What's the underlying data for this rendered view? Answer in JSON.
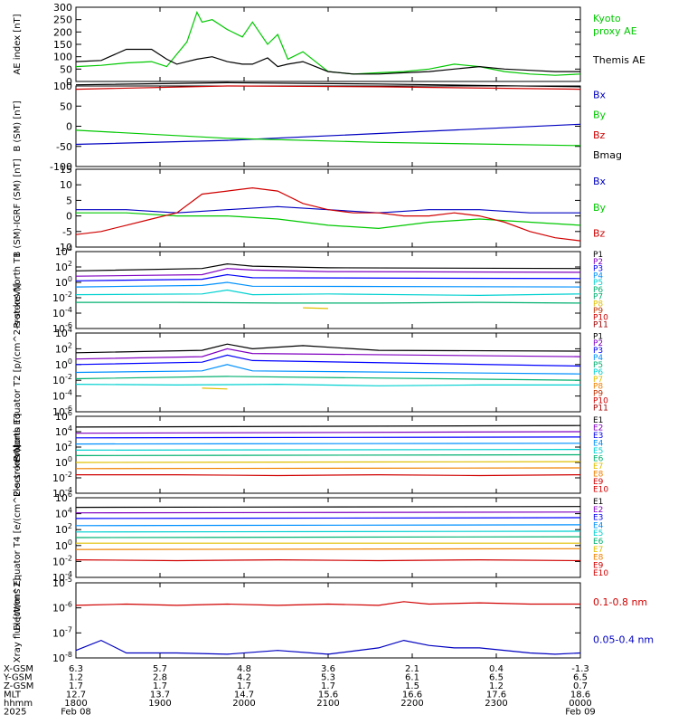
{
  "colors": {
    "black": "#000000",
    "green": "#00c800",
    "blue": "#0000c0",
    "red": "#d00000",
    "purple": "#8000c0",
    "navy": "#0000ff",
    "skyblue": "#0090ff",
    "cyan": "#00d0d0",
    "teal": "#00b070",
    "yellow": "#e0c000",
    "orange": "#f08000",
    "brown": "#c03000",
    "darkred": "#a00000"
  },
  "chart_data": [
    {
      "type": "line",
      "id": "ae",
      "ylabel": "AE index [nT]",
      "ylim": [
        0,
        300
      ],
      "yticks": [
        "0",
        "50",
        "100",
        "150",
        "200",
        "250",
        "300"
      ],
      "series": [
        {
          "name": "Kyoto proxy AE",
          "color": "green",
          "x": [
            0,
            0.05,
            0.1,
            0.15,
            0.18,
            0.2,
            0.22,
            0.24,
            0.25,
            0.27,
            0.3,
            0.33,
            0.35,
            0.38,
            0.4,
            0.42,
            0.45,
            0.5,
            0.55,
            0.6,
            0.65,
            0.7,
            0.75,
            0.8,
            0.85,
            0.9,
            0.95,
            1
          ],
          "y": [
            60,
            65,
            75,
            80,
            60,
            110,
            160,
            280,
            240,
            250,
            210,
            180,
            240,
            150,
            190,
            90,
            120,
            40,
            30,
            35,
            40,
            50,
            70,
            60,
            40,
            30,
            25,
            30
          ]
        },
        {
          "name": "Themis AE",
          "color": "black",
          "x": [
            0,
            0.05,
            0.1,
            0.15,
            0.18,
            0.2,
            0.22,
            0.24,
            0.27,
            0.3,
            0.33,
            0.35,
            0.38,
            0.4,
            0.42,
            0.45,
            0.5,
            0.55,
            0.6,
            0.65,
            0.7,
            0.75,
            0.8,
            0.85,
            0.9,
            0.95,
            1
          ],
          "y": [
            80,
            85,
            130,
            130,
            90,
            70,
            80,
            90,
            100,
            80,
            70,
            70,
            95,
            60,
            70,
            80,
            40,
            30,
            30,
            35,
            40,
            50,
            60,
            50,
            45,
            40,
            40
          ]
        }
      ]
    },
    {
      "type": "line",
      "id": "bsm",
      "ylabel": "B (SM) [nT]",
      "ylim": [
        -100,
        100
      ],
      "yticks": [
        "-100",
        "-50",
        "0",
        "50",
        "100"
      ],
      "series": [
        {
          "name": "Bx",
          "color": "blue",
          "x": [
            0,
            0.3,
            0.6,
            1
          ],
          "y": [
            -45,
            -35,
            -18,
            5
          ]
        },
        {
          "name": "By",
          "color": "green",
          "x": [
            0,
            0.3,
            0.6,
            1
          ],
          "y": [
            -10,
            -30,
            -40,
            -48
          ]
        },
        {
          "name": "Bz",
          "color": "red",
          "x": [
            0,
            0.3,
            0.6,
            1
          ],
          "y": [
            92,
            100,
            98,
            92
          ]
        },
        {
          "name": "Bmag",
          "color": "black",
          "x": [
            0,
            0.3,
            0.6,
            1
          ],
          "y": [
            103,
            108,
            105,
            98
          ]
        }
      ]
    },
    {
      "type": "line",
      "id": "bdiff",
      "ylabel": "B (SM)-IGRF (SM) [nT]",
      "ylim": [
        -10,
        15
      ],
      "yticks": [
        "-10",
        "-5",
        "0",
        "5",
        "10",
        "15"
      ],
      "series": [
        {
          "name": "Bx",
          "color": "blue",
          "x": [
            0,
            0.1,
            0.2,
            0.3,
            0.4,
            0.5,
            0.6,
            0.7,
            0.8,
            0.9,
            1
          ],
          "y": [
            2,
            2,
            1,
            2,
            3,
            2,
            1,
            2,
            2,
            1,
            1
          ]
        },
        {
          "name": "By",
          "color": "green",
          "x": [
            0,
            0.1,
            0.2,
            0.3,
            0.4,
            0.5,
            0.6,
            0.7,
            0.8,
            0.9,
            1
          ],
          "y": [
            1,
            1,
            0,
            0,
            -1,
            -3,
            -4,
            -2,
            -1,
            -2,
            -3
          ]
        },
        {
          "name": "Bz",
          "color": "red",
          "x": [
            0,
            0.05,
            0.1,
            0.15,
            0.2,
            0.25,
            0.3,
            0.35,
            0.4,
            0.45,
            0.5,
            0.55,
            0.6,
            0.65,
            0.7,
            0.75,
            0.8,
            0.85,
            0.9,
            0.95,
            1
          ],
          "y": [
            -6,
            -5,
            -3,
            -1,
            1,
            7,
            8,
            9,
            8,
            4,
            2,
            1,
            1,
            0,
            0,
            1,
            0,
            -2,
            -5,
            -7,
            -8
          ]
        }
      ]
    },
    {
      "type": "line",
      "id": "p_north",
      "log": true,
      "ylabel": "Protons North T1",
      "ylim": [
        -6,
        4
      ],
      "yticks": [
        "10^4",
        "10^2",
        "10^0",
        "10^-2",
        "10^-4",
        "10^-6"
      ],
      "series": [
        {
          "name": "P1",
          "color": "black",
          "x": [
            0,
            0.25,
            0.3,
            0.35,
            0.5,
            1
          ],
          "y": [
            1.5,
            1.8,
            2.4,
            2.1,
            1.9,
            1.8
          ]
        },
        {
          "name": "P2",
          "color": "purple",
          "x": [
            0,
            0.25,
            0.3,
            0.35,
            0.5,
            1
          ],
          "y": [
            0.8,
            1.0,
            1.8,
            1.6,
            1.4,
            1.3
          ]
        },
        {
          "name": "P3",
          "color": "navy",
          "x": [
            0,
            0.25,
            0.3,
            0.35,
            1
          ],
          "y": [
            0.2,
            0.4,
            1.0,
            0.6,
            0.5
          ]
        },
        {
          "name": "P4",
          "color": "skyblue",
          "x": [
            0,
            0.25,
            0.3,
            0.35,
            1
          ],
          "y": [
            -0.6,
            -0.4,
            0.0,
            -0.5,
            -0.6
          ]
        },
        {
          "name": "P5",
          "color": "cyan",
          "x": [
            0,
            0.25,
            0.3,
            0.35,
            0.5,
            0.8,
            1
          ],
          "y": [
            -1.6,
            -1.5,
            -1.0,
            -1.6,
            -1.5,
            -1.7,
            -1.5
          ]
        },
        {
          "name": "P7",
          "color": "teal",
          "x": [
            0,
            0.2,
            0.4,
            0.6,
            0.8,
            1
          ],
          "y": [
            -2.6,
            -2.6,
            -2.7,
            -2.7,
            -2.6,
            -2.7
          ]
        },
        {
          "name": "P8",
          "color": "yellow",
          "x": [
            0.45,
            0.5
          ],
          "y": [
            -3.3,
            -3.4
          ]
        }
      ],
      "legend": [
        "P1",
        "P2",
        "P3",
        "P4",
        "P5",
        "P6",
        "P7",
        "P8",
        "P9",
        "P10",
        "P11"
      ]
    },
    {
      "type": "line",
      "id": "p_eq",
      "log": true,
      "ylabel": "Protons Equator T2 [p/(cm^2-s-sr-keV)]",
      "ylim": [
        -6,
        4
      ],
      "yticks": [
        "10^4",
        "10^2",
        "10^0",
        "10^-2",
        "10^-4",
        "10^-6"
      ],
      "series": [
        {
          "name": "P1",
          "color": "black",
          "x": [
            0,
            0.25,
            0.3,
            0.35,
            0.45,
            0.6,
            1
          ],
          "y": [
            1.5,
            1.8,
            2.6,
            2.0,
            2.4,
            1.8,
            1.7
          ]
        },
        {
          "name": "P2",
          "color": "purple",
          "x": [
            0,
            0.25,
            0.3,
            0.35,
            1
          ],
          "y": [
            0.7,
            1.0,
            2.0,
            1.4,
            1.0
          ]
        },
        {
          "name": "P3",
          "color": "navy",
          "x": [
            0,
            0.25,
            0.3,
            0.35,
            1
          ],
          "y": [
            0.0,
            0.3,
            1.2,
            0.5,
            -0.2
          ]
        },
        {
          "name": "P4",
          "color": "skyblue",
          "x": [
            0,
            0.25,
            0.3,
            0.35,
            1
          ],
          "y": [
            -1.0,
            -0.8,
            0.0,
            -0.8,
            -1.2
          ]
        },
        {
          "name": "P5",
          "color": "teal",
          "x": [
            0,
            0.3,
            1
          ],
          "y": [
            -1.8,
            -1.5,
            -2.0
          ]
        },
        {
          "name": "P6",
          "color": "cyan",
          "x": [
            0,
            0.2,
            0.4,
            0.6,
            0.8,
            1
          ],
          "y": [
            -2.5,
            -2.6,
            -2.5,
            -2.7,
            -2.6,
            -2.6
          ]
        },
        {
          "name": "P7",
          "color": "yellow",
          "x": [
            0.25,
            0.3
          ],
          "y": [
            -3.0,
            -3.1
          ]
        }
      ],
      "legend": [
        "P1",
        "P2",
        "P3",
        "P4",
        "P5",
        "P6",
        "P7",
        "P8",
        "P9",
        "P10",
        "P11"
      ]
    },
    {
      "type": "line",
      "id": "e_north",
      "log": true,
      "ylabel": "Electrons North T3",
      "ylim": [
        -4,
        6
      ],
      "yticks": [
        "10^6",
        "10^4",
        "10^2",
        "10^0",
        "10^-2",
        "10^-4"
      ],
      "series": [
        {
          "name": "E1",
          "color": "black",
          "x": [
            0,
            1
          ],
          "y": [
            4.6,
            4.8
          ]
        },
        {
          "name": "E2",
          "color": "purple",
          "x": [
            0,
            1
          ],
          "y": [
            3.8,
            4.0
          ]
        },
        {
          "name": "E3",
          "color": "navy",
          "x": [
            0,
            1
          ],
          "y": [
            3.2,
            3.3
          ]
        },
        {
          "name": "E4",
          "color": "skyblue",
          "x": [
            0,
            1
          ],
          "y": [
            2.4,
            2.5
          ]
        },
        {
          "name": "E5",
          "color": "cyan",
          "x": [
            0,
            1
          ],
          "y": [
            1.6,
            1.7
          ]
        },
        {
          "name": "E6",
          "color": "teal",
          "x": [
            0,
            1
          ],
          "y": [
            0.9,
            1.0
          ]
        },
        {
          "name": "E7",
          "color": "yellow",
          "x": [
            0,
            1
          ],
          "y": [
            0.0,
            0.1
          ]
        },
        {
          "name": "E8",
          "color": "orange",
          "x": [
            0,
            1
          ],
          "y": [
            -0.8,
            -0.7
          ]
        },
        {
          "name": "E9",
          "color": "red",
          "x": [
            0,
            0.2,
            0.4,
            0.6,
            0.8,
            1
          ],
          "y": [
            -1.6,
            -1.6,
            -1.7,
            -1.6,
            -1.7,
            -1.6
          ]
        }
      ],
      "legend": [
        "E1",
        "E2",
        "E3",
        "E4",
        "E5",
        "E6",
        "E7",
        "E8",
        "E9",
        "E10"
      ]
    },
    {
      "type": "line",
      "id": "e_eq",
      "log": true,
      "ylabel": "Electrons Equator T4 [e/(cm^2-s-sr-keV)]",
      "ylim": [
        -4,
        6
      ],
      "yticks": [
        "10^6",
        "10^4",
        "10^2",
        "10^0",
        "10^-2",
        "10^-4"
      ],
      "series": [
        {
          "name": "E1",
          "color": "black",
          "x": [
            0,
            1
          ],
          "y": [
            4.8,
            4.9
          ]
        },
        {
          "name": "E2",
          "color": "purple",
          "x": [
            0,
            1
          ],
          "y": [
            4.1,
            4.2
          ]
        },
        {
          "name": "E3",
          "color": "navy",
          "x": [
            0,
            1
          ],
          "y": [
            3.4,
            3.5
          ]
        },
        {
          "name": "E4",
          "color": "skyblue",
          "x": [
            0,
            1
          ],
          "y": [
            2.5,
            2.6
          ]
        },
        {
          "name": "E5",
          "color": "cyan",
          "x": [
            0,
            1
          ],
          "y": [
            1.7,
            1.8
          ]
        },
        {
          "name": "E6",
          "color": "teal",
          "x": [
            0,
            1
          ],
          "y": [
            1.0,
            1.1
          ]
        },
        {
          "name": "E7",
          "color": "yellow",
          "x": [
            0,
            1
          ],
          "y": [
            0.3,
            0.3
          ]
        },
        {
          "name": "E8",
          "color": "orange",
          "x": [
            0,
            1
          ],
          "y": [
            -0.5,
            -0.4
          ]
        },
        {
          "name": "E9",
          "color": "red",
          "x": [
            0,
            0.2,
            0.4,
            0.6,
            0.8,
            1
          ],
          "y": [
            -1.8,
            -1.9,
            -1.8,
            -1.9,
            -1.8,
            -1.9
          ]
        }
      ],
      "legend": [
        "E1",
        "E2",
        "E3",
        "E4",
        "E5",
        "E6",
        "E7",
        "E8",
        "E9",
        "E10"
      ]
    },
    {
      "type": "line",
      "id": "xray",
      "log": true,
      "ylabel": "Xray flux [W/m^2]",
      "ylim": [
        -8,
        -5
      ],
      "yticks": [
        "10^-5",
        "10^-6",
        "10^-7",
        "10^-8"
      ],
      "series": [
        {
          "name": "0.1-0.8 nm",
          "color": "red",
          "x": [
            0,
            0.1,
            0.2,
            0.3,
            0.4,
            0.5,
            0.6,
            0.65,
            0.7,
            0.8,
            0.9,
            1
          ],
          "y": [
            -5.9,
            -5.85,
            -5.9,
            -5.85,
            -5.9,
            -5.85,
            -5.9,
            -5.75,
            -5.85,
            -5.8,
            -5.85,
            -5.85
          ]
        },
        {
          "name": "0.05-0.4 nm",
          "color": "blue",
          "x": [
            0,
            0.05,
            0.1,
            0.15,
            0.2,
            0.3,
            0.4,
            0.5,
            0.6,
            0.65,
            0.7,
            0.75,
            0.8,
            0.9,
            0.95,
            1
          ],
          "y": [
            -7.7,
            -7.3,
            -7.8,
            -7.8,
            -7.8,
            -7.85,
            -7.7,
            -7.85,
            -7.6,
            -7.3,
            -7.5,
            -7.6,
            -7.6,
            -7.8,
            -7.85,
            -7.8
          ]
        }
      ]
    }
  ],
  "axes_footer": {
    "rows": [
      {
        "label": "X-GSM",
        "values": [
          "6.3",
          "5.7",
          "4.8",
          "3.6",
          "2.1",
          "0.4",
          "-1.3"
        ]
      },
      {
        "label": "Y-GSM",
        "values": [
          "1.2",
          "2.8",
          "4.2",
          "5.3",
          "6.1",
          "6.5",
          "6.5"
        ]
      },
      {
        "label": "Z-GSM",
        "values": [
          "1.7",
          "1.7",
          "1.7",
          "1.7",
          "1.5",
          "1.2",
          "0.7"
        ]
      },
      {
        "label": "MLT",
        "values": [
          "12.7",
          "13.7",
          "14.7",
          "15.6",
          "16.6",
          "17.6",
          "18.6"
        ]
      },
      {
        "label": "hhmm",
        "values": [
          "1800",
          "1900",
          "2000",
          "2100",
          "2200",
          "2300",
          "0000"
        ]
      }
    ],
    "year": "2025",
    "date_start": "Feb 08",
    "date_end": "Feb 09"
  }
}
